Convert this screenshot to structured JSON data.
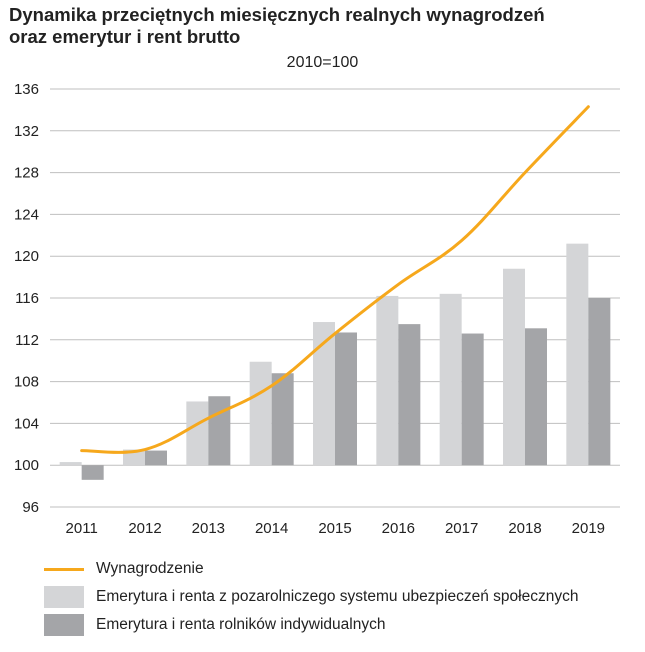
{
  "title_line1": "Dynamika przeciętnych miesięcznych realnych wynagrodzeń",
  "title_line2": "oraz emerytur i rent brutto",
  "colors": {
    "wage": "#f6a81c",
    "pension_nonag": "#d4d5d7",
    "pension_farm": "#a4a5a8",
    "grid": "#bfbfbf"
  },
  "chart_data": {
    "type": "bar",
    "title": "Dynamika przeciętnych miesięcznych realnych wynagrodzeń oraz emerytur i rent brutto",
    "subtitle": "2010=100",
    "categories": [
      "2011",
      "2012",
      "2013",
      "2014",
      "2015",
      "2016",
      "2017",
      "2018",
      "2019"
    ],
    "y_ticks": [
      "96",
      "100",
      "104",
      "108",
      "112",
      "116",
      "120",
      "124",
      "128",
      "132",
      "136"
    ],
    "ylim": [
      96,
      136
    ],
    "baseline": 100,
    "series": [
      {
        "name": "Emerytura i renta z pozarolniczego systemu ubezpieczeń społecznych",
        "type": "bar",
        "values": [
          100.3,
          101.5,
          106.1,
          109.9,
          113.7,
          116.2,
          116.4,
          118.8,
          121.2
        ]
      },
      {
        "name": "Emerytura i renta rolników indywidualnych",
        "type": "bar",
        "values": [
          98.6,
          101.4,
          106.6,
          108.8,
          112.7,
          113.5,
          112.6,
          113.1,
          116.0
        ]
      },
      {
        "name": "Wynagrodzenie",
        "type": "line",
        "values": [
          101.4,
          101.5,
          104.5,
          107.6,
          112.6,
          117.3,
          121.5,
          128.0,
          134.3
        ]
      }
    ]
  }
}
